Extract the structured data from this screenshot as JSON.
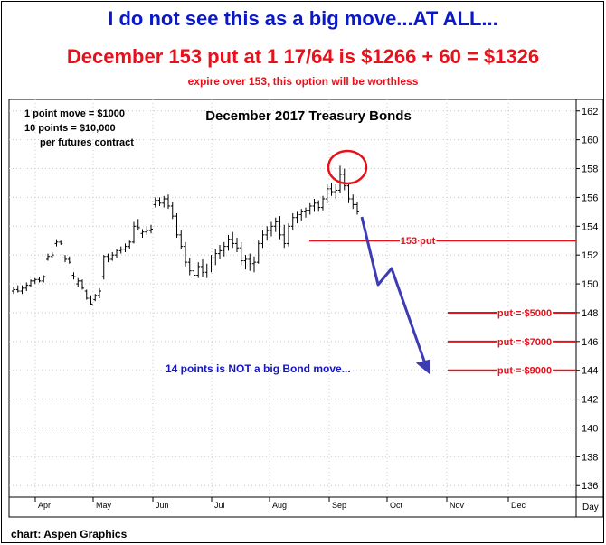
{
  "headline": "I do not see this as a big move...AT ALL...",
  "subheadline": "December 153 put at 1 17/64 is $1266 + 60 = $1326",
  "note": "expire over 153, this option will be worthless",
  "credit": "chart: Aspen Graphics",
  "chart_data": {
    "type": "bar",
    "title": "December 2017 Treasury Bonds",
    "info_lines": [
      "1 point move = $1000",
      "10 points = $10,000",
      "per futures contract"
    ],
    "y_ticks": [
      136,
      138,
      140,
      142,
      144,
      146,
      148,
      150,
      152,
      154,
      156,
      158,
      160,
      162
    ],
    "ylim": [
      135.2,
      162.8
    ],
    "x_ticks": [
      "Apr",
      "May",
      "Jun",
      "Jul",
      "Aug",
      "Sep",
      "Oct",
      "Nov",
      "Dec"
    ],
    "x_unit_label": "Day",
    "ohlc": [
      [
        149.5,
        149.8,
        149.3,
        149.6
      ],
      [
        149.6,
        149.9,
        149.4,
        149.5
      ],
      [
        149.5,
        149.9,
        149.3,
        149.7
      ],
      [
        149.7,
        150.1,
        149.5,
        149.9
      ],
      [
        149.9,
        150.3,
        149.8,
        150.2
      ],
      [
        150.2,
        150.4,
        150.0,
        150.3
      ],
      [
        150.3,
        150.5,
        150.1,
        150.2
      ],
      [
        150.2,
        150.6,
        150.1,
        150.5
      ],
      [
        151.7,
        152.1,
        151.6,
        151.9
      ],
      [
        151.9,
        152.2,
        151.8,
        152.0
      ],
      [
        152.8,
        153.1,
        152.6,
        152.9
      ],
      [
        152.9,
        153.0,
        152.7,
        152.8
      ],
      [
        151.8,
        152.0,
        151.5,
        151.7
      ],
      [
        151.7,
        151.9,
        151.4,
        151.5
      ],
      [
        150.6,
        150.8,
        150.3,
        150.5
      ],
      [
        150.0,
        150.4,
        149.8,
        150.2
      ],
      [
        150.2,
        150.3,
        149.6,
        149.7
      ],
      [
        149.5,
        149.6,
        148.9,
        149.0
      ],
      [
        149.0,
        149.2,
        148.5,
        148.6
      ],
      [
        148.9,
        149.3,
        148.8,
        149.2
      ],
      [
        149.2,
        149.7,
        149.0,
        149.5
      ],
      [
        150.5,
        152.0,
        150.3,
        151.9
      ],
      [
        151.9,
        152.1,
        151.5,
        151.7
      ],
      [
        151.7,
        152.2,
        151.6,
        152.0
      ],
      [
        152.0,
        152.4,
        151.8,
        152.3
      ],
      [
        152.3,
        152.6,
        152.1,
        152.4
      ],
      [
        152.4,
        152.8,
        152.2,
        152.6
      ],
      [
        152.6,
        153.0,
        152.4,
        152.9
      ],
      [
        152.9,
        154.3,
        152.8,
        154.0
      ],
      [
        154.0,
        154.5,
        153.7,
        153.9
      ],
      [
        153.5,
        153.8,
        153.2,
        153.6
      ],
      [
        153.6,
        154.0,
        153.4,
        153.7
      ],
      [
        153.7,
        154.1,
        153.5,
        153.8
      ],
      [
        155.5,
        156.0,
        155.3,
        155.8
      ],
      [
        155.8,
        156.0,
        155.4,
        155.6
      ],
      [
        155.6,
        156.1,
        155.3,
        155.9
      ],
      [
        155.9,
        156.2,
        155.2,
        155.4
      ],
      [
        155.4,
        155.7,
        154.5,
        154.7
      ],
      [
        154.7,
        154.9,
        153.2,
        153.4
      ],
      [
        153.4,
        153.7,
        152.4,
        152.6
      ],
      [
        152.6,
        152.9,
        151.2,
        151.5
      ],
      [
        151.5,
        151.8,
        150.6,
        150.9
      ],
      [
        150.9,
        151.3,
        150.3,
        150.6
      ],
      [
        150.6,
        151.5,
        150.4,
        151.2
      ],
      [
        151.2,
        151.7,
        150.5,
        150.8
      ],
      [
        150.8,
        151.4,
        150.4,
        151.1
      ],
      [
        151.1,
        152.0,
        150.8,
        151.8
      ],
      [
        151.8,
        152.4,
        151.3,
        152.1
      ],
      [
        152.1,
        152.7,
        151.7,
        152.3
      ],
      [
        152.3,
        152.9,
        151.9,
        152.6
      ],
      [
        152.6,
        153.4,
        152.3,
        153.1
      ],
      [
        153.1,
        153.6,
        152.5,
        152.8
      ],
      [
        152.8,
        153.2,
        152.2,
        152.5
      ],
      [
        152.5,
        152.9,
        151.3,
        151.6
      ],
      [
        151.6,
        152.0,
        151.0,
        151.7
      ],
      [
        151.7,
        152.1,
        150.9,
        151.4
      ],
      [
        151.4,
        151.9,
        150.8,
        151.5
      ],
      [
        151.5,
        153.0,
        151.4,
        152.8
      ],
      [
        152.8,
        153.7,
        152.5,
        153.4
      ],
      [
        153.4,
        154.0,
        153.0,
        153.7
      ],
      [
        153.7,
        154.3,
        153.3,
        154.0
      ],
      [
        154.0,
        154.6,
        153.6,
        154.3
      ],
      [
        154.3,
        154.7,
        153.1,
        153.4
      ],
      [
        153.4,
        154.1,
        152.5,
        152.8
      ],
      [
        152.8,
        154.2,
        152.6,
        154.0
      ],
      [
        154.0,
        154.9,
        153.7,
        154.6
      ],
      [
        154.6,
        155.0,
        154.2,
        154.8
      ],
      [
        154.8,
        155.2,
        154.4,
        155.0
      ],
      [
        155.0,
        155.3,
        154.6,
        155.1
      ],
      [
        155.1,
        155.6,
        154.8,
        155.4
      ],
      [
        155.4,
        155.9,
        155.0,
        155.6
      ],
      [
        155.6,
        155.8,
        155.0,
        155.3
      ],
      [
        155.3,
        156.1,
        155.1,
        155.9
      ],
      [
        155.9,
        156.9,
        155.6,
        156.6
      ],
      [
        156.6,
        157.0,
        156.1,
        156.4
      ],
      [
        156.4,
        156.9,
        155.9,
        156.5
      ],
      [
        156.5,
        158.2,
        156.3,
        157.6
      ],
      [
        157.6,
        158.0,
        156.5,
        156.8
      ],
      [
        156.8,
        157.0,
        155.6,
        155.9
      ],
      [
        155.9,
        156.2,
        155.2,
        155.5
      ],
      [
        155.5,
        155.7,
        154.8,
        155.0
      ]
    ],
    "projection": [
      [
        155.0,
        153.5
      ],
      [
        150.1,
        151.1
      ],
      [
        144.2
      ]
    ],
    "levels": [
      {
        "label": "153 put",
        "value": 153
      },
      {
        "label": "put = $5000",
        "value": 148
      },
      {
        "label": "put = $7000",
        "value": 146
      },
      {
        "label": "put = $9000",
        "value": 144
      }
    ],
    "annotation": "14 points is NOT a big Bond move...",
    "colors": {
      "bars": "#000000",
      "level": "#e8101a",
      "arrow": "#3c3cb4",
      "annotation": "#1414c8",
      "circle": "#e8101a",
      "grid": "#c8c8c8"
    }
  }
}
